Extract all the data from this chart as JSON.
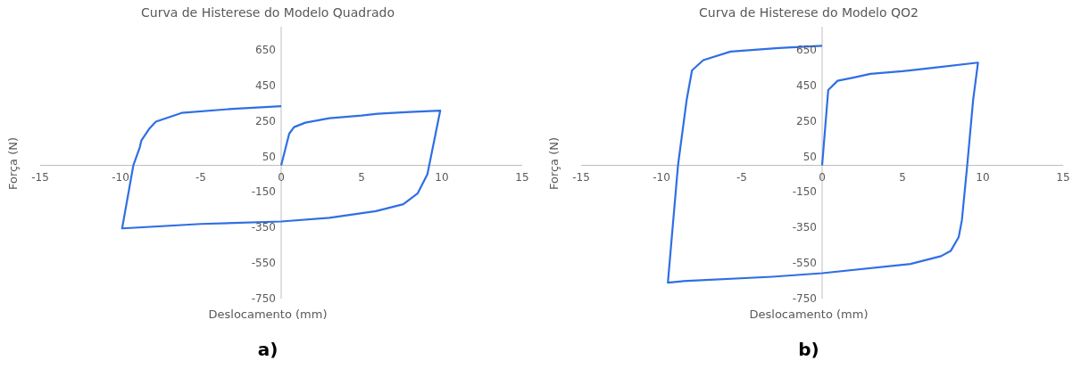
{
  "chart_data": [
    {
      "type": "line",
      "title": "Curva de Histerese do Modelo Quadrado",
      "xlabel": "Deslocamento (mm)",
      "ylabel": "Força (N)",
      "annotations": [
        "a)"
      ],
      "xlim": [
        -15,
        15
      ],
      "xticks": [
        -15,
        -10,
        -5,
        0,
        5,
        10,
        15
      ],
      "ylim": [
        -750,
        780
      ],
      "yticks": [
        -750,
        -550,
        -350,
        -150,
        50,
        250,
        450,
        650
      ],
      "x": [
        0,
        0.5,
        0.8,
        1.5,
        3,
        5,
        6,
        8,
        9.9,
        9.1,
        8.5,
        7.6,
        5.9,
        3,
        0,
        -5,
        -9.9,
        -9.2,
        -8.8,
        -8.7,
        -8.2,
        -7.8,
        -6.2,
        -3,
        0
      ],
      "series": [
        {
          "color": "#2f6fe4",
          "values": [
            0,
            178,
            215,
            240,
            265,
            280,
            290,
            300,
            308,
            -50,
            -157,
            -219,
            -258,
            -295,
            -316,
            -330,
            -355,
            0,
            101,
            140,
            207,
            246,
            295,
            318,
            333
          ]
        }
      ]
    },
    {
      "type": "line",
      "title": "Curva de Histerese do Modelo QO2",
      "xlabel": "Deslocamento (mm)",
      "ylabel": "Força (N)",
      "annotations": [
        "b)"
      ],
      "xlim": [
        -15,
        15
      ],
      "xticks": [
        -15,
        -10,
        -5,
        0,
        5,
        10,
        15
      ],
      "ylim": [
        -750,
        780
      ],
      "yticks": [
        -750,
        -550,
        -350,
        -150,
        50,
        250,
        450,
        650
      ],
      "x": [
        0,
        0.38,
        0.96,
        2,
        3,
        5,
        7,
        9.7,
        9.4,
        9.03,
        8.7,
        8.5,
        8,
        7.4,
        5.5,
        0,
        -3.1,
        -8.65,
        -9.6,
        -8.97,
        -8.43,
        -8.1,
        -7.4,
        -5.7,
        -2.7,
        0
      ],
      "series": [
        {
          "color": "#2f6fe4",
          "values": [
            0,
            424,
            476,
            495,
            515,
            530,
            550,
            578,
            369,
            0,
            -308,
            -404,
            -482,
            -511,
            -555,
            -607,
            -627,
            -652,
            -660,
            0,
            369,
            534,
            592,
            640,
            660,
            673
          ]
        }
      ]
    }
  ]
}
